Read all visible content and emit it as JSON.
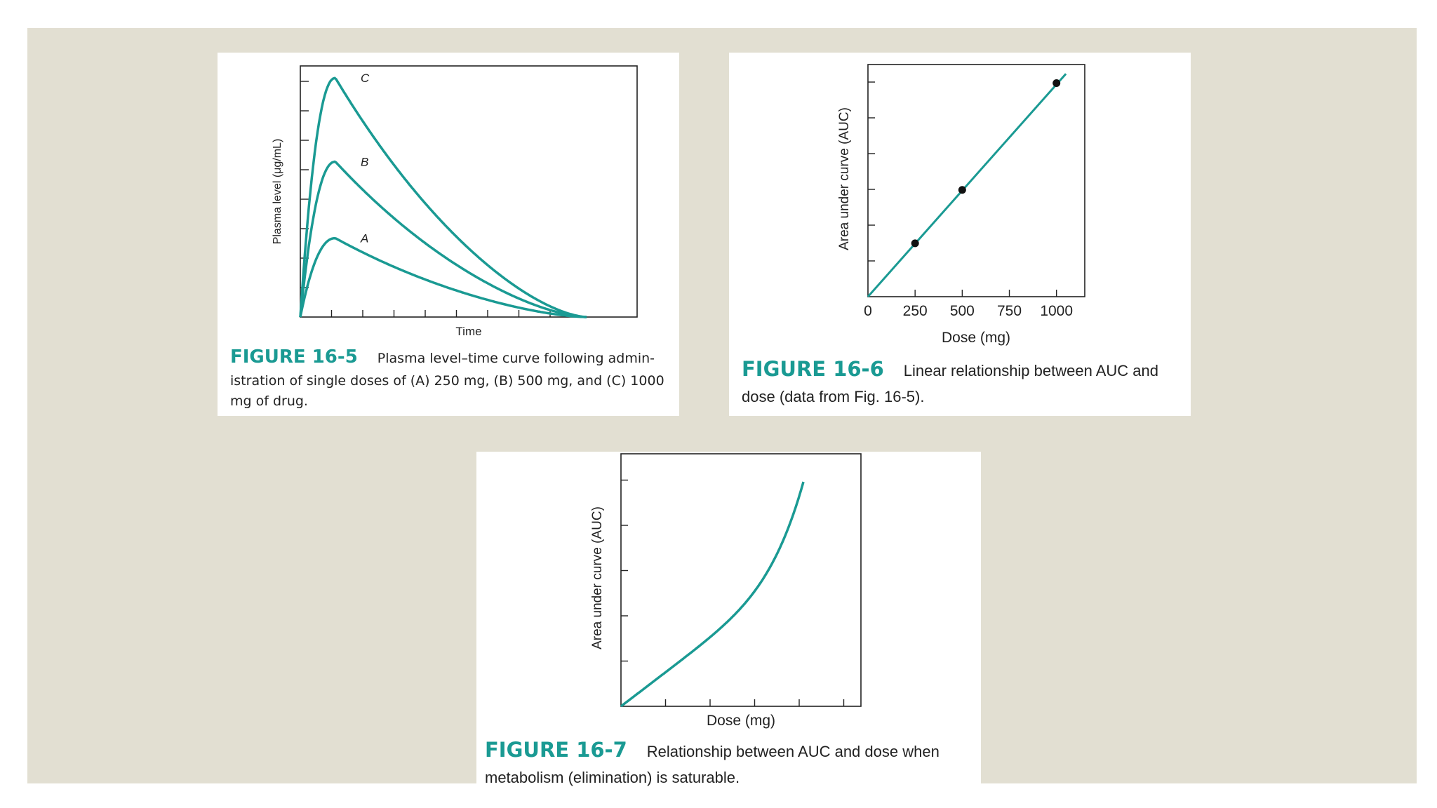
{
  "chart_data": [
    {
      "type": "line",
      "xlabel": "Time",
      "ylabel": "Plasma level (μg/mL)",
      "series": [
        {
          "name": "A",
          "peak": 0.33
        },
        {
          "name": "B",
          "peak": 0.65
        },
        {
          "name": "C",
          "peak": 1.0
        }
      ],
      "caption": {
        "figure": "FIGURE 16-5",
        "text": "Plasma level–time curve following admin-istration of single doses of (A) 250 mg, (B) 500 mg, and (C) 1000 mg of drug."
      }
    },
    {
      "type": "scatter",
      "xlabel": "Dose (mg)",
      "ylabel": "Area under curve (AUC)",
      "x_ticks": [
        "0",
        "250",
        "500",
        "750",
        "1000"
      ],
      "xlim": [
        0,
        1150
      ],
      "ylim": [
        0,
        1.0
      ],
      "points": [
        {
          "x": 250,
          "y": 0.23
        },
        {
          "x": 500,
          "y": 0.46
        },
        {
          "x": 1000,
          "y": 0.92
        }
      ],
      "fit_line": {
        "x": [
          0,
          1050
        ],
        "y": [
          0,
          0.96
        ]
      },
      "caption": {
        "figure": "FIGURE 16-6",
        "text": "Linear relationship between AUC and dose (data from Fig. 16-5)."
      }
    },
    {
      "type": "line",
      "xlabel": "Dose (mg)",
      "ylabel": "Area under curve (AUC)",
      "caption": {
        "figure": "FIGURE 16-7",
        "text": "Relationship between AUC and dose when metabolism (elimination) is saturable."
      }
    }
  ],
  "colors": {
    "curve": "#1a9a93",
    "background": "#e2dfd2",
    "axis": "#222222",
    "caption_figure": "#1a9a93"
  }
}
